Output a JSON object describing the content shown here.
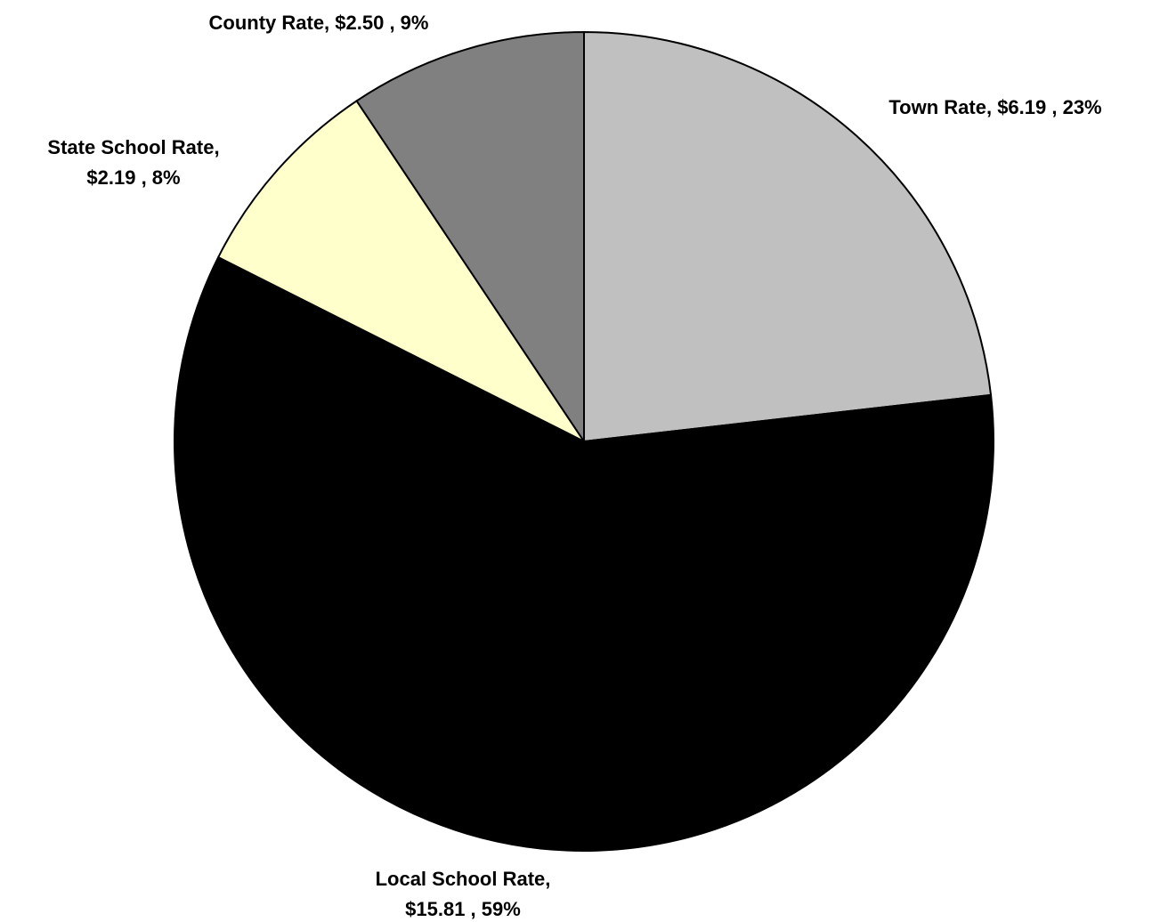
{
  "chart_data": {
    "type": "pie",
    "title": "",
    "start_angle_deg": 0,
    "direction": "clockwise",
    "slices": [
      {
        "name": "Town Rate",
        "value": 6.19,
        "percent": 23,
        "color": "#c0c0c0",
        "label_lines": [
          "Town Rate, $6.19 , 23%"
        ]
      },
      {
        "name": "Local School Rate",
        "value": 15.81,
        "percent": 59,
        "color": "#000000",
        "label_lines": [
          "Local School Rate,",
          "$15.81 , 59%"
        ]
      },
      {
        "name": "State School Rate",
        "value": 2.19,
        "percent": 8,
        "color": "#ffffcc",
        "label_lines": [
          "State School Rate,",
          "$2.19 , 8%"
        ]
      },
      {
        "name": "County Rate",
        "value": 2.5,
        "percent": 9,
        "color": "#808080",
        "label_lines": [
          "County Rate, $2.50 , 9%"
        ]
      }
    ]
  }
}
